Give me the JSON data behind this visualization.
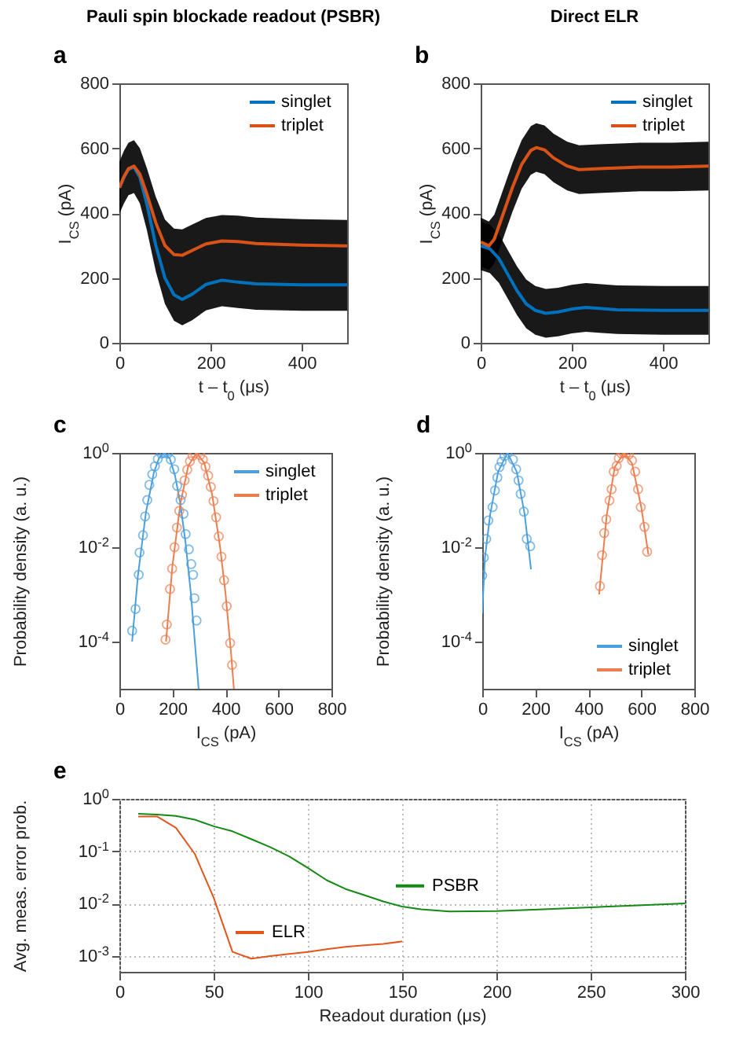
{
  "chart_data": [
    {
      "type": "line",
      "title": "Pauli spin blockade readout (PSBR)",
      "annotations": [
        "a"
      ],
      "xlabel": "t – t$_{0}$ (μs)",
      "ylabel": "I$_{CS}$ (pA)",
      "xlim": [
        0,
        500
      ],
      "xticks": [
        0,
        200,
        400
      ],
      "ylim": [
        0,
        800
      ],
      "yticks": [
        0,
        200,
        400,
        600,
        800
      ],
      "legend": "top right",
      "series": [
        {
          "name": "singlet",
          "color": "#0072bd",
          "x": [
            0,
            10,
            20,
            32,
            45,
            60,
            80,
            100,
            120,
            138,
            160,
            190,
            225,
            260,
            300,
            400,
            500
          ],
          "values": [
            478,
            510,
            535,
            542,
            510,
            430,
            300,
            200,
            148,
            134,
            150,
            180,
            193,
            187,
            182,
            179,
            179
          ],
          "lower": [
            398,
            430,
            455,
            462,
            430,
            350,
            220,
            120,
            68,
            54,
            70,
            100,
            113,
            107,
            102,
            99,
            99
          ],
          "upper": [
            558,
            592,
            617,
            625,
            600,
            540,
            450,
            380,
            352,
            350,
            365,
            385,
            394,
            392,
            386,
            381,
            379
          ]
        },
        {
          "name": "triplet",
          "color": "#d95319",
          "x": [
            0,
            10,
            20,
            32,
            45,
            60,
            80,
            100,
            120,
            138,
            160,
            190,
            225,
            260,
            300,
            400,
            500
          ],
          "values": [
            478,
            512,
            537,
            545,
            520,
            460,
            370,
            300,
            272,
            270,
            285,
            305,
            314,
            312,
            306,
            301,
            299
          ]
        }
      ]
    },
    {
      "type": "line",
      "title": "Direct ELR",
      "annotations": [
        "b"
      ],
      "xlabel": "t – t$_{0}$ (μs)",
      "ylabel": "I$_{CS}$ (pA)",
      "xlim": [
        0,
        500
      ],
      "xticks": [
        0,
        200,
        400
      ],
      "ylim": [
        0,
        800
      ],
      "yticks": [
        0,
        200,
        400,
        600,
        800
      ],
      "legend": "top right",
      "series": [
        {
          "name": "singlet",
          "color": "#0072bd",
          "x": [
            0,
            20,
            40,
            60,
            80,
            100,
            120,
            143,
            170,
            200,
            231,
            260,
            300,
            400,
            500
          ],
          "values": [
            299,
            290,
            260,
            210,
            160,
            120,
            100,
            91,
            95,
            104,
            109,
            106,
            102,
            100,
            100
          ],
          "lower": [
            224,
            215,
            185,
            135,
            85,
            45,
            25,
            16,
            20,
            29,
            34,
            31,
            27,
            25,
            25
          ],
          "upper": [
            374,
            365,
            335,
            285,
            235,
            195,
            175,
            166,
            170,
            179,
            184,
            181,
            177,
            175,
            175
          ]
        },
        {
          "name": "triplet",
          "color": "#d95319",
          "x": [
            0,
            18,
            30,
            50,
            70,
            90,
            110,
            122,
            140,
            160,
            190,
            216,
            260,
            350,
            420,
            500
          ],
          "values": [
            311,
            299,
            320,
            400,
            480,
            550,
            593,
            602,
            595,
            570,
            545,
            534,
            537,
            542,
            542,
            545
          ],
          "lower": [
            236,
            224,
            245,
            325,
            405,
            475,
            518,
            527,
            520,
            495,
            470,
            459,
            462,
            467,
            467,
            470
          ],
          "upper": [
            386,
            374,
            395,
            475,
            555,
            625,
            668,
            677,
            670,
            645,
            620,
            609,
            612,
            617,
            617,
            620
          ]
        }
      ]
    },
    {
      "type": "line",
      "annotations": [
        "c"
      ],
      "xlabel": "I$_{CS}$ (pA)",
      "ylabel": "Probability density (a. u.)",
      "log": true,
      "xlim": [
        0,
        800
      ],
      "xticks": [
        0,
        200,
        400,
        600,
        800
      ],
      "ylim": [
        1e-05,
        1
      ],
      "yticks": [
        {
          "value": 1,
          "label": "10$^{0}$"
        },
        {
          "value": 0.01,
          "label": "10$^{-2}$"
        },
        {
          "value": 0.0001,
          "label": "10$^{-4}$"
        }
      ],
      "legend": "top right",
      "series": [
        {
          "name": "singlet",
          "color": "#4a9fdc",
          "x": [
            48,
            70,
            100,
            130,
            150,
            170,
            190,
            210,
            230,
            250,
            270,
            299
          ],
          "values": [
            0.0001,
            0.0025,
            0.054,
            0.38,
            0.79,
            1,
            0.76,
            0.33,
            0.083,
            0.012,
            0.001,
            1e-05
          ]
        },
        {
          "name": "triplet",
          "color": "#ed7d4f",
          "x": [
            176,
            200,
            230,
            260,
            291,
            320,
            350,
            380,
            400,
            420,
            432
          ],
          "values": [
            0.0001,
            0.004,
            0.083,
            0.53,
            1,
            0.62,
            0.13,
            0.01,
            0.0011,
            6.9e-05,
            1e-05
          ]
        },
        {
          "type": "scatter",
          "color": "#4a9fdc",
          "x": [
            48,
            61,
            73,
            76,
            89,
            97,
            105,
            113,
            124,
            134,
            145,
            158,
            170,
            183,
            194,
            207,
            218,
            231,
            242,
            250,
            262,
            271,
            278,
            283,
            291
          ],
          "values": [
            0.00017,
            0.00049,
            0.0026,
            0.0077,
            0.018,
            0.045,
            0.1,
            0.21,
            0.35,
            0.52,
            0.74,
            0.96,
            1,
            0.96,
            0.72,
            0.45,
            0.2,
            0.1,
            0.051,
            0.019,
            0.009,
            0.0044,
            0.0026,
            0.00083,
            0.00028
          ]
        },
        {
          "type": "scatter",
          "color": "#ed7d4f",
          "x": [
            174,
            179,
            191,
            199,
            208,
            217,
            226,
            236,
            246,
            256,
            266,
            276,
            285,
            305,
            315,
            325,
            335,
            345,
            355,
            365,
            375,
            385,
            395,
            405,
            418,
            425
          ],
          "values": [
            0.00011,
            0.00023,
            0.0013,
            0.0035,
            0.01,
            0.026,
            0.059,
            0.13,
            0.26,
            0.44,
            0.66,
            0.86,
            0.98,
            0.89,
            0.72,
            0.51,
            0.33,
            0.19,
            0.095,
            0.043,
            0.017,
            0.0063,
            0.002,
            0.00056,
            9.3e-05,
            3.2e-05
          ]
        }
      ]
    },
    {
      "type": "line",
      "annotations": [
        "d"
      ],
      "xlabel": "I$_{CS}$ (pA)",
      "ylabel": "Probability density (a. u.)",
      "log": true,
      "xlim": [
        0,
        800
      ],
      "xticks": [
        0,
        200,
        400,
        600,
        800
      ],
      "ylim": [
        1e-05,
        1
      ],
      "yticks": [
        {
          "value": 1,
          "label": "10$^{0}$"
        },
        {
          "value": 0.01,
          "label": "10$^{-2}$"
        },
        {
          "value": 0.0001,
          "label": "10$^{-4}$"
        }
      ],
      "legend": "bottom right",
      "series": [
        {
          "name": "singlet",
          "color": "#4a9fdc",
          "x": [
            0,
            10,
            30,
            60,
            95,
            130,
            160,
            184
          ],
          "values": [
            0.0004,
            0.006,
            0.05,
            0.4,
            1,
            0.4,
            0.05,
            0.0034
          ]
        },
        {
          "name": "triplet",
          "color": "#ed7d4f",
          "x": [
            441,
            470,
            500,
            535,
            565,
            600,
            627
          ],
          "values": [
            0.001,
            0.05,
            0.5,
            1,
            0.6,
            0.07,
            0.007
          ]
        },
        {
          "type": "scatter",
          "color": "#4a9fdc",
          "x": [
            0,
            6,
            15,
            23,
            39,
            48,
            57,
            65,
            73,
            84,
            95,
            116,
            128,
            137,
            145,
            157,
            168,
            181
          ],
          "values": [
            0.0025,
            0.006,
            0.015,
            0.037,
            0.071,
            0.16,
            0.3,
            0.5,
            0.65,
            0.86,
            1,
            0.72,
            0.45,
            0.26,
            0.135,
            0.057,
            0.015,
            0.0105
          ]
        },
        {
          "type": "scatter",
          "color": "#ed7d4f",
          "x": [
            444,
            452,
            460,
            468,
            480,
            488,
            496,
            507,
            515,
            525,
            533,
            544,
            553,
            565,
            577,
            588,
            598,
            612,
            622
          ],
          "values": [
            0.0015,
            0.0068,
            0.02,
            0.039,
            0.098,
            0.17,
            0.4,
            0.53,
            0.77,
            0.96,
            1,
            1,
            0.92,
            0.69,
            0.4,
            0.17,
            0.071,
            0.027,
            0.008
          ]
        }
      ]
    },
    {
      "type": "line",
      "annotations": [
        "e"
      ],
      "xlabel": "Readout duration (μs)",
      "ylabel": "Avg. meas. error prob.",
      "log": true,
      "grid": true,
      "legend": "bottom",
      "xlim": [
        0,
        300
      ],
      "xticks": [
        0,
        50,
        100,
        150,
        200,
        250,
        300
      ],
      "ylim": [
        0.0005,
        1
      ],
      "yticks": [
        {
          "value": 1,
          "label": "10$^{0}$"
        },
        {
          "value": 0.1,
          "label": "10$^{-1}$"
        },
        {
          "value": 0.01,
          "label": "10$^{-2}$"
        },
        {
          "value": 0.001,
          "label": "10$^{-3}$"
        }
      ],
      "series": [
        {
          "name": "PSBR",
          "color": "#138a13",
          "x": [
            10,
            20,
            30,
            40,
            50,
            60,
            70,
            80,
            90,
            100,
            110,
            120,
            130,
            140,
            150,
            160,
            175,
            200,
            225,
            250,
            275,
            300
          ],
          "values": [
            0.52,
            0.5,
            0.47,
            0.4,
            0.3,
            0.24,
            0.17,
            0.12,
            0.08,
            0.048,
            0.028,
            0.019,
            0.0145,
            0.011,
            0.0088,
            0.0078,
            0.0071,
            0.0072,
            0.0078,
            0.0085,
            0.0093,
            0.0101
          ]
        },
        {
          "name": "ELR",
          "color": "#e2561c",
          "x": [
            10,
            20,
            30,
            40,
            50,
            60,
            70,
            80,
            90,
            100,
            110,
            120,
            130,
            140,
            150
          ],
          "values": [
            0.46,
            0.46,
            0.28,
            0.089,
            0.013,
            0.0012,
            0.00089,
            0.001,
            0.0011,
            0.0012,
            0.00135,
            0.0015,
            0.0016,
            0.0017,
            0.0019
          ]
        }
      ]
    }
  ]
}
